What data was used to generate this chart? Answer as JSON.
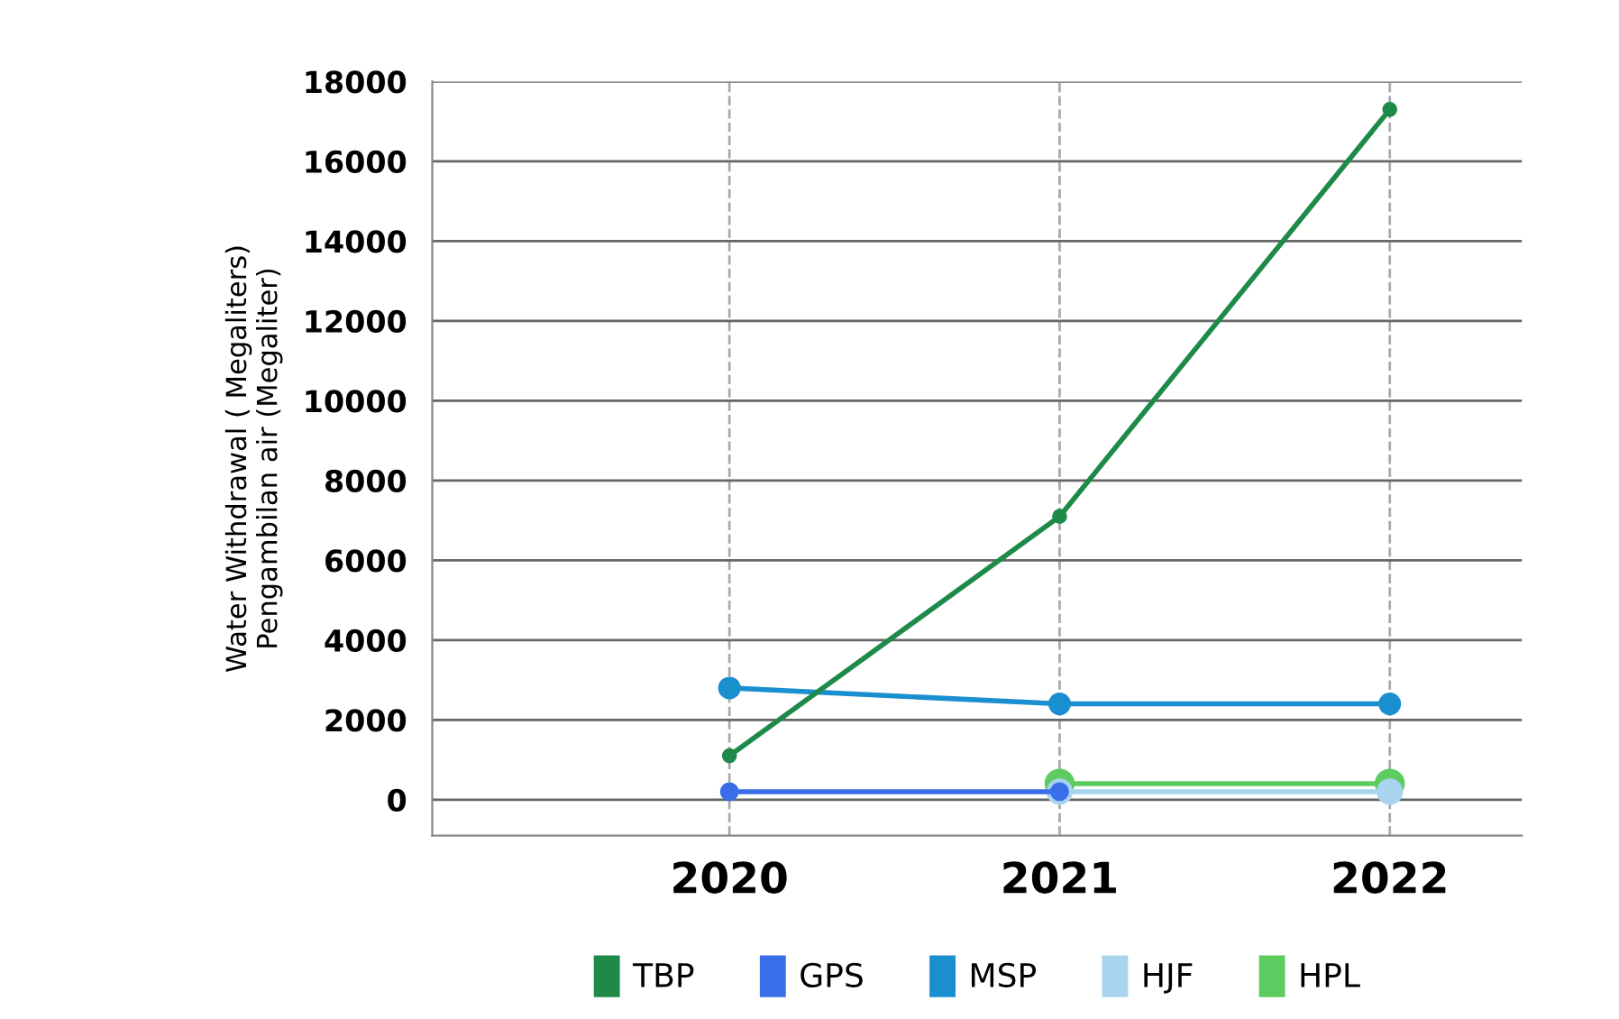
{
  "chart_data": {
    "type": "line",
    "ylabel": "Water Withdrawal ( Megaliters)\nPengambilan air (Megaliter)",
    "x": [
      2020,
      2021,
      2022
    ],
    "xlim": [
      2019.1,
      2022.4
    ],
    "xticks": [
      2020,
      2021,
      2022
    ],
    "ylim": [
      -900,
      18000
    ],
    "yticks": [
      0,
      2000,
      4000,
      6000,
      8000,
      10000,
      12000,
      14000,
      16000,
      18000
    ],
    "grid": true,
    "legend": "bottom",
    "marker": "circle",
    "line_style": "solid",
    "series": [
      {
        "name": "TBP",
        "color": "#1e8a4a",
        "values": [
          1100,
          7100,
          17300
        ]
      },
      {
        "name": "GPS",
        "color": "#3a6ee8",
        "values": [
          200,
          200,
          null
        ]
      },
      {
        "name": "MSP",
        "color": "#1a8fcf",
        "values": [
          2800,
          2400,
          2400
        ]
      },
      {
        "name": "HJF",
        "color": "#a8d4ee",
        "values": [
          null,
          200,
          200
        ]
      },
      {
        "name": "HPL",
        "color": "#5ccc60",
        "values": [
          null,
          400,
          400
        ]
      }
    ]
  }
}
